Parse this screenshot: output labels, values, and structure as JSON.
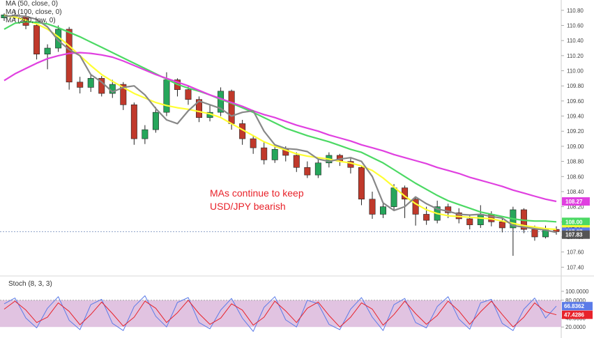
{
  "chart_data": [
    {
      "type": "line",
      "instrument_note": "USD/JPY",
      "legend": [
        "MA (50, close, 0)",
        "MA (100, close, 0)",
        "MA (200, low, 0)"
      ],
      "annotation": [
        "MAs continue to keep",
        "USD/JPY bearish"
      ],
      "y_ticks": [
        "110.80",
        "110.60",
        "110.40",
        "110.20",
        "110.00",
        "109.80",
        "109.60",
        "109.40",
        "109.20",
        "109.00",
        "108.80",
        "108.60",
        "108.40",
        "108.20",
        "108.00",
        "107.80",
        "107.60",
        "107.40"
      ],
      "ylim": [
        107.32,
        110.9
      ],
      "price_badges": [
        {
          "value": "108.27",
          "color": "#e040e0",
          "text_color": "#ffffff"
        },
        {
          "value": "108.00",
          "color": "#4cd964",
          "text_color": "#ffffff"
        },
        {
          "value": "107.90",
          "color": "#ffff33",
          "text_color": "#000000"
        },
        {
          "value": "107.87",
          "color": "#5b7be8",
          "text_color": "#ffffff"
        },
        {
          "value": "107.83",
          "color": "#555555",
          "text_color": "#ffffff"
        }
      ],
      "current_price": 107.87,
      "series": [
        {
          "name": "MA (50, close, 0)",
          "color": "#ffff33",
          "values": [
            110.73,
            110.71,
            110.67,
            110.62,
            110.55,
            110.45,
            110.33,
            110.2,
            110.07,
            109.95,
            109.86,
            109.78,
            109.7,
            109.64,
            109.58,
            109.54,
            109.51,
            109.49,
            109.46,
            109.43,
            109.38,
            109.3,
            109.22,
            109.14,
            109.06,
            109.0,
            108.95,
            108.9,
            108.87,
            108.85,
            108.83,
            108.8,
            108.78,
            108.74,
            108.68,
            108.58,
            108.46,
            108.34,
            108.24,
            108.16,
            108.11,
            108.08,
            108.07,
            108.06,
            108.05,
            108.04,
            108.01,
            107.98,
            107.95,
            107.93,
            107.91,
            107.9
          ]
        },
        {
          "name": "MA (100, close, 0)",
          "color": "#4cd964",
          "values": [
            110.55,
            110.63,
            110.65,
            110.64,
            110.62,
            110.57,
            110.51,
            110.45,
            110.38,
            110.31,
            110.24,
            110.17,
            110.1,
            110.03,
            109.96,
            109.89,
            109.82,
            109.77,
            109.73,
            109.68,
            109.62,
            109.57,
            109.51,
            109.45,
            109.38,
            109.31,
            109.24,
            109.19,
            109.14,
            109.1,
            109.06,
            109.01,
            108.96,
            108.92,
            108.85,
            108.78,
            108.69,
            108.6,
            108.51,
            108.43,
            108.35,
            108.28,
            108.23,
            108.18,
            108.13,
            108.1,
            108.07,
            108.04,
            108.02,
            108.01,
            108.01,
            108.0
          ]
        },
        {
          "name": "MA (200, low, 0)",
          "color": "#e040e0",
          "values": [
            109.87,
            109.96,
            110.03,
            110.1,
            110.16,
            110.2,
            110.23,
            110.24,
            110.23,
            110.21,
            110.18,
            110.13,
            110.07,
            110.01,
            109.95,
            109.9,
            109.85,
            109.8,
            109.74,
            109.68,
            109.63,
            109.58,
            109.53,
            109.47,
            109.42,
            109.38,
            109.33,
            109.28,
            109.24,
            109.2,
            109.15,
            109.11,
            109.07,
            109.02,
            108.98,
            108.94,
            108.89,
            108.85,
            108.81,
            108.77,
            108.72,
            108.68,
            108.64,
            108.59,
            108.55,
            108.51,
            108.47,
            108.42,
            108.38,
            108.34,
            108.3,
            108.27
          ]
        },
        {
          "name": "",
          "color": "#888888",
          "values": [
            110.72,
            110.73,
            110.72,
            110.68,
            110.58,
            110.4,
            110.28,
            110.2,
            109.95,
            109.85,
            109.72,
            109.78,
            109.8,
            109.68,
            109.5,
            109.35,
            109.3,
            109.47,
            109.6,
            109.55,
            109.5,
            109.4,
            109.45,
            109.47,
            109.2,
            109.02,
            108.97,
            108.96,
            108.93,
            108.83,
            108.8,
            108.83,
            108.85,
            108.8,
            108.6,
            108.25,
            108.15,
            108.2,
            108.33,
            108.24,
            108.17,
            108.14,
            108.1,
            108.09,
            108.1,
            108.07,
            108.05,
            107.95,
            107.93,
            107.91,
            107.89,
            107.86
          ]
        }
      ],
      "candles": [
        [
          110.7,
          110.74,
          110.76,
          110.66
        ],
        [
          110.74,
          110.72,
          110.8,
          110.68
        ],
        [
          110.72,
          110.6,
          110.76,
          110.55
        ],
        [
          110.6,
          110.22,
          110.63,
          110.15
        ],
        [
          110.22,
          110.3,
          110.35,
          110.02
        ],
        [
          110.3,
          110.55,
          110.6,
          110.25
        ],
        [
          110.55,
          109.85,
          110.58,
          109.75
        ],
        [
          109.85,
          109.78,
          109.92,
          109.7
        ],
        [
          109.78,
          109.9,
          109.95,
          109.72
        ],
        [
          109.9,
          109.7,
          109.93,
          109.66
        ],
        [
          109.7,
          109.82,
          109.88,
          109.64
        ],
        [
          109.82,
          109.55,
          109.85,
          109.48
        ],
        [
          109.55,
          109.1,
          109.58,
          109.02
        ],
        [
          109.1,
          109.22,
          109.28,
          109.03
        ],
        [
          109.22,
          109.45,
          109.52,
          109.18
        ],
        [
          109.45,
          109.88,
          109.98,
          109.4
        ],
        [
          109.88,
          109.75,
          109.9,
          109.66
        ],
        [
          109.75,
          109.62,
          109.8,
          109.55
        ],
        [
          109.62,
          109.38,
          109.66,
          109.32
        ],
        [
          109.38,
          109.45,
          109.55,
          109.33
        ],
        [
          109.45,
          109.73,
          109.78,
          109.4
        ],
        [
          109.73,
          109.3,
          109.75,
          109.22
        ],
        [
          109.3,
          109.1,
          109.35,
          109.02
        ],
        [
          109.1,
          108.98,
          109.15,
          108.9
        ],
        [
          108.98,
          108.82,
          109.05,
          108.76
        ],
        [
          108.82,
          108.96,
          109.02,
          108.78
        ],
        [
          108.96,
          108.88,
          109.0,
          108.8
        ],
        [
          108.88,
          108.72,
          108.92,
          108.66
        ],
        [
          108.72,
          108.62,
          108.8,
          108.58
        ],
        [
          108.62,
          108.78,
          108.84,
          108.58
        ],
        [
          108.78,
          108.88,
          108.92,
          108.72
        ],
        [
          108.88,
          108.8,
          108.9,
          108.74
        ],
        [
          108.8,
          108.72,
          108.84,
          108.64
        ],
        [
          108.72,
          108.3,
          108.75,
          108.22
        ],
        [
          108.3,
          108.1,
          108.4,
          108.04
        ],
        [
          108.1,
          108.2,
          108.26,
          108.05
        ],
        [
          108.2,
          108.45,
          108.5,
          108.15
        ],
        [
          108.45,
          108.3,
          108.48,
          108.05
        ],
        [
          108.3,
          108.1,
          108.33,
          107.95
        ],
        [
          108.1,
          108.02,
          108.2,
          107.96
        ],
        [
          108.02,
          108.2,
          108.28,
          107.98
        ],
        [
          108.2,
          108.12,
          108.24,
          108.05
        ],
        [
          108.12,
          108.04,
          108.18,
          107.98
        ],
        [
          108.04,
          107.96,
          108.1,
          107.9
        ],
        [
          107.96,
          108.1,
          108.22,
          107.92
        ],
        [
          108.1,
          108.0,
          108.14,
          107.94
        ],
        [
          108.0,
          107.92,
          108.04,
          107.86
        ],
        [
          107.92,
          108.16,
          108.2,
          107.55
        ],
        [
          108.16,
          107.9,
          108.18,
          107.85
        ],
        [
          107.9,
          107.8,
          107.95,
          107.75
        ],
        [
          107.8,
          107.9,
          107.95,
          107.78
        ],
        [
          107.9,
          107.87,
          107.94,
          107.83
        ]
      ]
    },
    {
      "type": "line",
      "title": "Stoch (8, 3, 3)",
      "y_ticks": [
        "100.0000",
        "80.0000",
        "40.0000",
        "20.0000"
      ],
      "ylim": [
        0,
        100
      ],
      "band": [
        20,
        80
      ],
      "badges": [
        {
          "value": "66.8362",
          "color": "#5b7be8",
          "text_color": "#ffffff"
        },
        {
          "value": "47.4286",
          "color": "#e8222a",
          "text_color": "#ffffff"
        }
      ],
      "series": [
        {
          "name": "",
          "color": "#5b7be8",
          "values": [
            72,
            85,
            40,
            18,
            62,
            88,
            35,
            14,
            70,
            82,
            28,
            12,
            66,
            90,
            44,
            20,
            75,
            86,
            30,
            16,
            58,
            84,
            40,
            10,
            64,
            88,
            36,
            20,
            80,
            72,
            26,
            14,
            60,
            86,
            42,
            12,
            70,
            84,
            30,
            18,
            66,
            88,
            38,
            15,
            74,
            82,
            28,
            12,
            60,
            85,
            40,
            66.8
          ]
        },
        {
          "name": "",
          "color": "#e8222a",
          "values": [
            60,
            78,
            58,
            30,
            42,
            74,
            55,
            25,
            48,
            76,
            50,
            22,
            42,
            78,
            62,
            30,
            52,
            80,
            50,
            26,
            40,
            72,
            58,
            24,
            42,
            78,
            56,
            30,
            62,
            76,
            46,
            20,
            42,
            74,
            60,
            24,
            48,
            78,
            50,
            26,
            46,
            78,
            56,
            26,
            54,
            78,
            48,
            20,
            42,
            74,
            54,
            47.4
          ]
        }
      ]
    }
  ]
}
